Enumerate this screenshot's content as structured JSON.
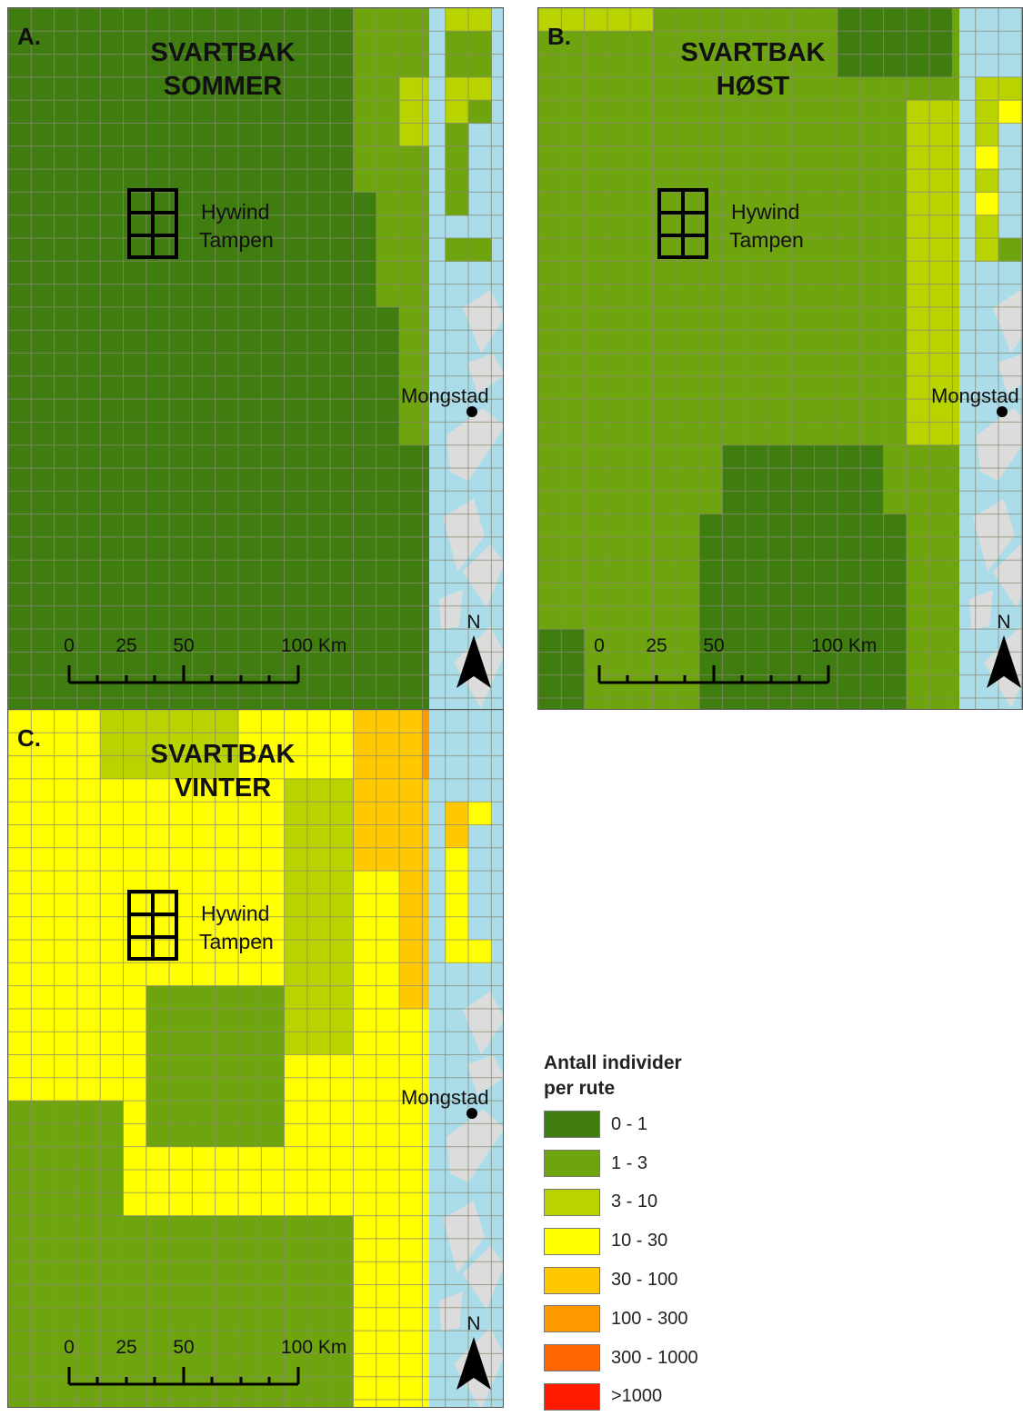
{
  "legend": {
    "title_line1": "Antall individer",
    "title_line2": "per rute",
    "items": [
      {
        "label": "0 - 1",
        "color": "#3f7d10"
      },
      {
        "label": "1 - 3",
        "color": "#6ea50e"
      },
      {
        "label": "3 - 10",
        "color": "#b8d300"
      },
      {
        "label": "10 - 30",
        "color": "#ffff00"
      },
      {
        "label": "30 - 100",
        "color": "#ffc800"
      },
      {
        "label": "100 - 300",
        "color": "#ff9a00"
      },
      {
        "label": "300 - 1000",
        "color": "#ff6600"
      },
      {
        "label": ">1000",
        "color": "#ff1a00"
      }
    ]
  },
  "colors": {
    "sea_coastal": "#aadcea",
    "land": "#dcdcdc",
    "grid_line": "#8a8a72"
  },
  "panels": [
    {
      "letter": "A.",
      "title_line1": "SVARTBAK",
      "title_line2": "SOMMER",
      "site_label_1": "Hywind",
      "site_label_2": "Tampen",
      "place_label": "Mongstad",
      "scale_ticks": [
        "0",
        "25",
        "50"
      ],
      "scale_end": "100 Km",
      "north": "N"
    },
    {
      "letter": "B.",
      "title_line1": "SVARTBAK",
      "title_line2": "HØST",
      "site_label_1": "Hywind",
      "site_label_2": "Tampen",
      "place_label": "Mongstad",
      "scale_ticks": [
        "0",
        "25",
        "50"
      ],
      "scale_end": "100 Km",
      "north": "N"
    },
    {
      "letter": "C.",
      "title_line1": "SVARTBAK",
      "title_line2": "VINTER",
      "site_label_1": "Hywind",
      "site_label_2": "Tampen",
      "place_label": "Mongstad",
      "scale_ticks": [
        "0",
        "25",
        "50"
      ],
      "scale_end": "100 Km",
      "north": "N"
    }
  ]
}
